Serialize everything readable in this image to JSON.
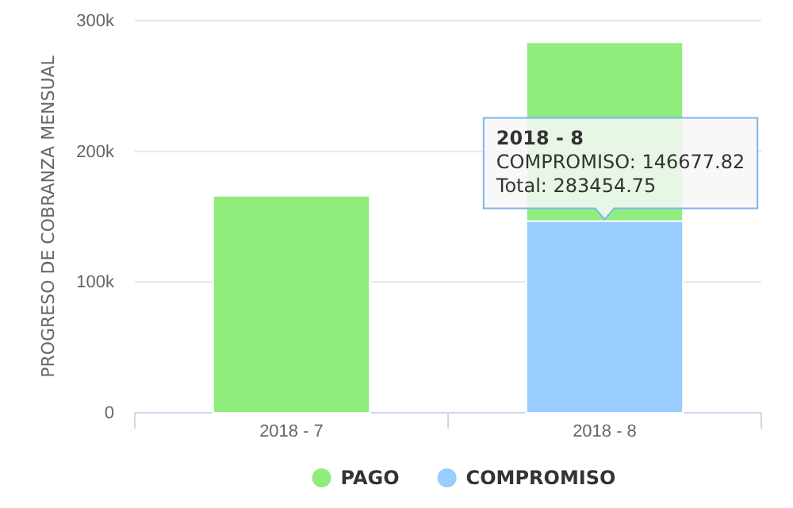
{
  "chart_data": {
    "type": "bar",
    "ylabel": "PROGRESO DE COBRANZA MENSUAL",
    "categories": [
      "2018 - 7",
      "2018 - 8"
    ],
    "stacked": true,
    "series": [
      {
        "name": "COMPROMISO",
        "color": "#99ccff",
        "values": [
          null,
          146677.82
        ]
      },
      {
        "name": "PAGO",
        "color": "#90ed7d",
        "values": [
          166000,
          136776.93
        ]
      }
    ],
    "ylim": [
      0,
      300000
    ],
    "yticks": [
      {
        "value": 0,
        "label": "0"
      },
      {
        "value": 100000,
        "label": "100k"
      },
      {
        "value": 200000,
        "label": "200k"
      },
      {
        "value": 300000,
        "label": "300k"
      }
    ],
    "grid": "y",
    "legend": "bottom",
    "annotations": [
      "2018 - 8",
      "COMPROMISO: 146677.82",
      "Total: 283454.75"
    ]
  }
}
